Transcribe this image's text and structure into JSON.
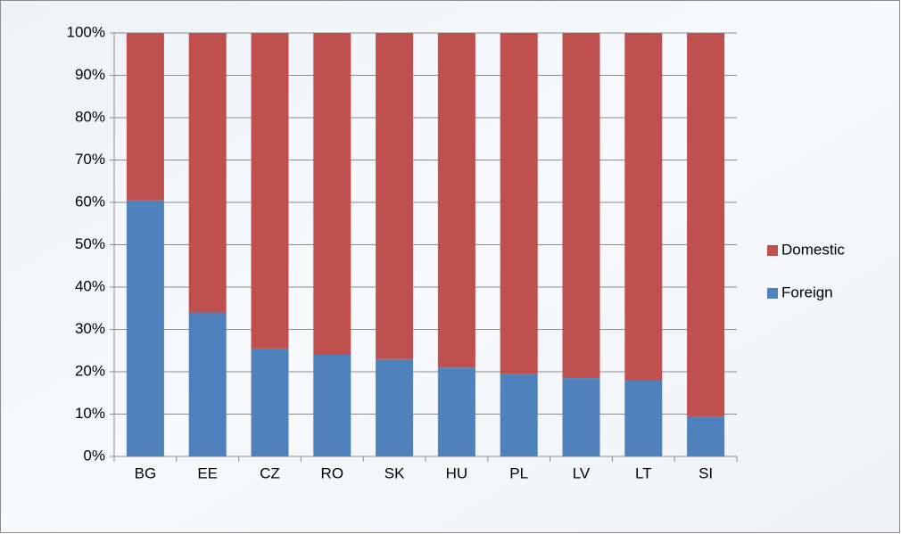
{
  "chart_data": {
    "type": "stacked_bar",
    "categories": [
      "BG",
      "EE",
      "CZ",
      "RO",
      "SK",
      "HU",
      "PL",
      "LV",
      "LT",
      "SI"
    ],
    "series": [
      {
        "name": "Foreign",
        "color": "#4f81bd",
        "values": [
          60.5,
          34,
          25.5,
          24,
          23,
          21,
          19.5,
          18.5,
          18,
          9.5
        ]
      },
      {
        "name": "Domestic",
        "color": "#c0504d",
        "values": [
          39.5,
          66,
          74.5,
          76,
          77,
          79,
          80.5,
          81.5,
          82,
          90.5
        ]
      }
    ],
    "ylim": [
      0,
      100
    ],
    "yticks": [
      {
        "value": 0,
        "label": "0%"
      },
      {
        "value": 10,
        "label": "10%"
      },
      {
        "value": 20,
        "label": "20%"
      },
      {
        "value": 30,
        "label": "30%"
      },
      {
        "value": 40,
        "label": "40%"
      },
      {
        "value": 50,
        "label": "50%"
      },
      {
        "value": 60,
        "label": "60%"
      },
      {
        "value": 70,
        "label": "70%"
      },
      {
        "value": 80,
        "label": "80%"
      },
      {
        "value": 90,
        "label": "90%"
      },
      {
        "value": 100,
        "label": "100%"
      }
    ],
    "grid": true,
    "legend": "right"
  }
}
